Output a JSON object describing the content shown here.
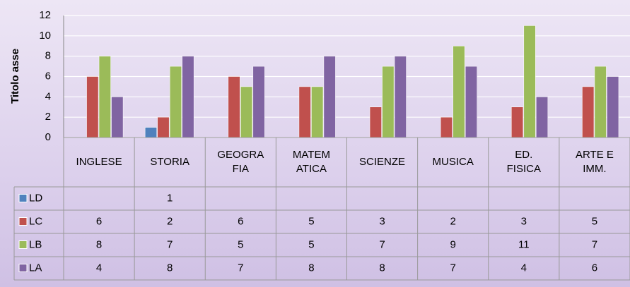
{
  "chart_data": {
    "type": "bar",
    "y_label": "Titolo asse",
    "categories": [
      [
        "INGLESE"
      ],
      [
        "STORIA"
      ],
      [
        "GEOGRA",
        "FIA"
      ],
      [
        "MATEM",
        "ATICA"
      ],
      [
        "SCIENZE"
      ],
      [
        "MUSICA"
      ],
      [
        "ED.",
        "FISICA"
      ],
      [
        "ARTE E",
        "IMM."
      ]
    ],
    "series": [
      {
        "name": "LD",
        "color": "#4f81bd",
        "values": [
          null,
          1,
          null,
          null,
          null,
          null,
          null,
          null
        ]
      },
      {
        "name": "LC",
        "color": "#c0504d",
        "values": [
          6,
          2,
          6,
          5,
          3,
          2,
          3,
          5
        ]
      },
      {
        "name": "LB",
        "color": "#9bbb59",
        "values": [
          8,
          7,
          5,
          5,
          7,
          9,
          11,
          7
        ]
      },
      {
        "name": "LA",
        "color": "#8064a2",
        "values": [
          4,
          8,
          7,
          8,
          8,
          7,
          4,
          6
        ]
      }
    ],
    "ylim": [
      0,
      12
    ],
    "yticks": [
      0,
      2,
      4,
      6,
      8,
      10,
      12
    ],
    "grid": true,
    "data_table": true
  }
}
